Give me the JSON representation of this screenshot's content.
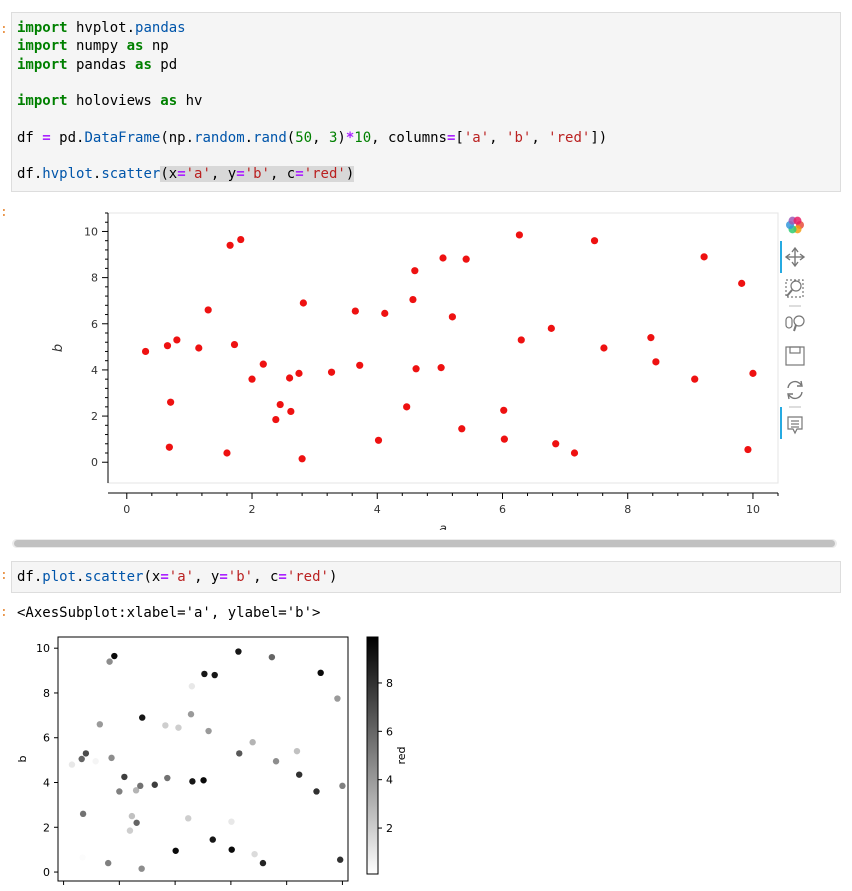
{
  "cells": {
    "cell1": {
      "lines": [
        [
          {
            "t": "import",
            "c": "kw"
          },
          {
            "t": " hvplot"
          },
          {
            "t": ".",
            "c": ""
          },
          {
            "t": "pandas",
            "c": "fn"
          }
        ],
        [
          {
            "t": "import",
            "c": "kw"
          },
          {
            "t": " numpy "
          },
          {
            "t": "as",
            "c": "kw"
          },
          {
            "t": " np"
          }
        ],
        [
          {
            "t": "import",
            "c": "kw"
          },
          {
            "t": " pandas "
          },
          {
            "t": "as",
            "c": "kw"
          },
          {
            "t": " pd"
          }
        ],
        [],
        [
          {
            "t": "import",
            "c": "kw"
          },
          {
            "t": " holoviews "
          },
          {
            "t": "as",
            "c": "kw"
          },
          {
            "t": " hv"
          }
        ],
        [],
        [
          {
            "t": "df "
          },
          {
            "t": "=",
            "c": "op"
          },
          {
            "t": " pd"
          },
          {
            "t": "."
          },
          {
            "t": "DataFrame",
            "c": "fn"
          },
          {
            "t": "(np"
          },
          {
            "t": "."
          },
          {
            "t": "random",
            "c": "fn"
          },
          {
            "t": "."
          },
          {
            "t": "rand",
            "c": "fn"
          },
          {
            "t": "("
          },
          {
            "t": "50",
            "c": "num"
          },
          {
            "t": ", "
          },
          {
            "t": "3",
            "c": "num"
          },
          {
            "t": ")"
          },
          {
            "t": "*",
            "c": "op"
          },
          {
            "t": "10",
            "c": "num"
          },
          {
            "t": ", columns"
          },
          {
            "t": "=",
            "c": "op"
          },
          {
            "t": "["
          },
          {
            "t": "'a'",
            "c": "str"
          },
          {
            "t": ", "
          },
          {
            "t": "'b'",
            "c": "str"
          },
          {
            "t": ", "
          },
          {
            "t": "'red'",
            "c": "str"
          },
          {
            "t": "])"
          }
        ],
        [],
        [
          {
            "t": "df"
          },
          {
            "t": "."
          },
          {
            "t": "hvplot",
            "c": "fn"
          },
          {
            "t": "."
          },
          {
            "t": "scatter",
            "c": "fn"
          },
          {
            "t": "(x",
            "c": "hl"
          },
          {
            "t": "=",
            "c": "op hl"
          },
          {
            "t": "'a'",
            "c": "str hl"
          },
          {
            "t": ", y",
            "c": "hl"
          },
          {
            "t": "=",
            "c": "op hl"
          },
          {
            "t": "'b'",
            "c": "str hl"
          },
          {
            "t": ", c",
            "c": "hl"
          },
          {
            "t": "=",
            "c": "op hl"
          },
          {
            "t": "'red'",
            "c": "str hl"
          },
          {
            "t": ")",
            "c": "hl"
          }
        ]
      ]
    },
    "cell2": {
      "lines": [
        [
          {
            "t": "df"
          },
          {
            "t": "."
          },
          {
            "t": "plot",
            "c": "fn"
          },
          {
            "t": "."
          },
          {
            "t": "scatter",
            "c": "fn"
          },
          {
            "t": "(x"
          },
          {
            "t": "=",
            "c": "op"
          },
          {
            "t": "'a'",
            "c": "str"
          },
          {
            "t": ", y"
          },
          {
            "t": "=",
            "c": "op"
          },
          {
            "t": "'b'",
            "c": "str"
          },
          {
            "t": ", c"
          },
          {
            "t": "=",
            "c": "op"
          },
          {
            "t": "'red'",
            "c": "str"
          },
          {
            "t": ")"
          }
        ]
      ]
    },
    "output2_text": "<AxesSubplot:xlabel='a', ylabel='b'>"
  },
  "toolbar": {
    "tools": [
      "bokeh-logo-icon",
      "pan-icon",
      "box-zoom-icon",
      "wheel-zoom-icon",
      "save-icon",
      "reset-icon",
      "hover-icon"
    ]
  },
  "chart_data": [
    {
      "type": "scatter",
      "library": "hvplot/bokeh",
      "xlabel": "a",
      "ylabel": "b",
      "xlim": [
        -0.3,
        10.4
      ],
      "ylim": [
        -0.9,
        10.8
      ],
      "xticks": [
        "0",
        "2",
        "4",
        "6",
        "8",
        "10"
      ],
      "yticks": [
        "0",
        "2",
        "4",
        "6",
        "8",
        "10"
      ],
      "point_color": "#ee1111",
      "x": [
        0.3,
        0.65,
        0.7,
        0.68,
        0.8,
        1.15,
        1.3,
        1.6,
        1.65,
        1.72,
        1.82,
        2.0,
        2.18,
        2.38,
        2.45,
        2.6,
        2.62,
        2.75,
        2.8,
        2.82,
        3.27,
        3.65,
        3.72,
        4.02,
        4.12,
        4.47,
        4.57,
        4.6,
        4.62,
        5.02,
        5.05,
        5.2,
        5.35,
        5.42,
        6.02,
        6.03,
        6.27,
        6.3,
        6.78,
        6.85,
        7.15,
        7.47,
        7.62,
        8.37,
        8.45,
        9.07,
        9.22,
        9.82,
        9.92,
        10.0
      ],
      "y": [
        4.8,
        5.05,
        2.6,
        0.65,
        5.3,
        4.95,
        6.6,
        0.4,
        9.4,
        5.1,
        9.65,
        3.6,
        4.25,
        1.85,
        2.5,
        3.65,
        2.2,
        3.85,
        0.15,
        6.9,
        3.9,
        6.55,
        4.2,
        0.95,
        6.45,
        2.4,
        7.05,
        8.3,
        4.05,
        4.1,
        8.85,
        6.3,
        1.45,
        8.8,
        2.25,
        1.0,
        9.85,
        5.3,
        5.8,
        0.8,
        0.4,
        9.6,
        4.95,
        5.4,
        4.35,
        3.6,
        8.9,
        7.75,
        0.55,
        3.85
      ]
    },
    {
      "type": "scatter",
      "library": "matplotlib",
      "xlabel": "",
      "ylabel": "b",
      "colorbar_label": "red",
      "xlim": [
        -0.2,
        10.2
      ],
      "ylim": [
        -0.4,
        10.5
      ],
      "yticks": [
        "0",
        "2",
        "4",
        "6",
        "8",
        "10"
      ],
      "colorbar_ticks": [
        "2",
        "4",
        "6",
        "8"
      ],
      "colorbar_range": [
        0.1,
        9.9
      ],
      "x": [
        0.3,
        0.65,
        0.7,
        0.68,
        0.8,
        1.15,
        1.3,
        1.6,
        1.65,
        1.72,
        1.82,
        2.0,
        2.18,
        2.38,
        2.45,
        2.6,
        2.62,
        2.75,
        2.8,
        2.82,
        3.27,
        3.65,
        3.72,
        4.02,
        4.12,
        4.47,
        4.57,
        4.6,
        4.62,
        5.02,
        5.05,
        5.2,
        5.35,
        5.42,
        6.02,
        6.03,
        6.27,
        6.3,
        6.78,
        6.85,
        7.15,
        7.47,
        7.62,
        8.37,
        8.45,
        9.07,
        9.22,
        9.82,
        9.92,
        10.0
      ],
      "y": [
        4.8,
        5.05,
        2.6,
        0.65,
        5.3,
        4.95,
        6.6,
        0.4,
        9.4,
        5.1,
        9.65,
        3.6,
        4.25,
        1.85,
        2.5,
        3.65,
        2.2,
        3.85,
        0.15,
        6.9,
        3.9,
        6.55,
        4.2,
        0.95,
        6.45,
        2.4,
        7.05,
        8.3,
        4.05,
        4.1,
        8.85,
        6.3,
        1.45,
        8.8,
        2.25,
        1.0,
        9.85,
        5.3,
        5.8,
        0.8,
        0.4,
        9.6,
        4.95,
        5.4,
        4.35,
        3.6,
        8.9,
        7.75,
        0.55,
        3.85
      ],
      "c": [
        1.0,
        6.0,
        5.5,
        0.2,
        7.0,
        0.5,
        4.0,
        5.0,
        4.5,
        4.5,
        9.5,
        5.0,
        7.5,
        2.0,
        2.5,
        3.0,
        6.0,
        5.5,
        4.5,
        9.0,
        7.5,
        2.0,
        5.5,
        9.5,
        2.0,
        2.0,
        4.0,
        1.0,
        9.0,
        9.5,
        9.0,
        4.0,
        9.0,
        9.0,
        1.0,
        9.5,
        9.0,
        6.5,
        3.0,
        1.5,
        8.5,
        6.0,
        4.5,
        2.5,
        8.0,
        8.0,
        9.5,
        4.0,
        8.0,
        5.0
      ]
    }
  ]
}
